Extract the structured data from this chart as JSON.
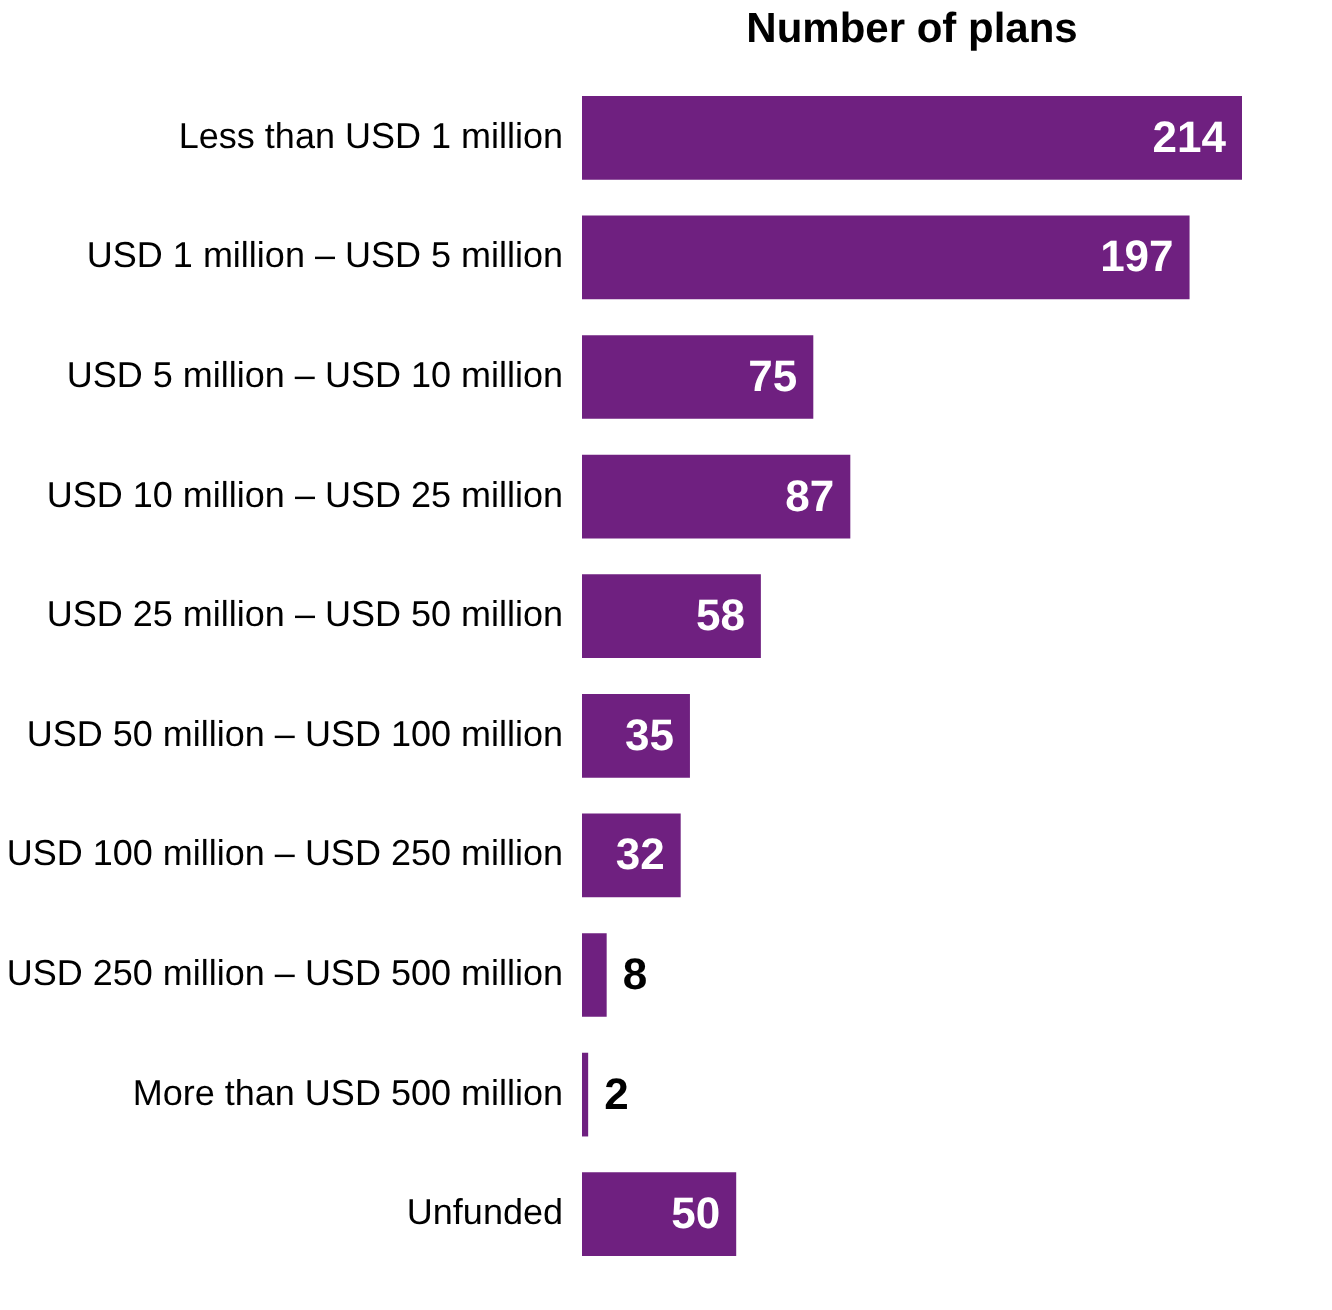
{
  "chart_data": {
    "type": "bar",
    "orientation": "horizontal",
    "title": "Number of plans",
    "categories": [
      "Less than USD 1 million",
      "USD 1 million – USD 5 million",
      "USD 5 million – USD 10 million",
      "USD 10 million – USD 25 million",
      "USD 25 million – USD 50 million",
      "USD 50 million – USD 100 million",
      "USD 100 million – USD 250 million",
      "USD 250 million – USD 500 million",
      "More than USD 500 million",
      "Unfunded"
    ],
    "values": [
      214,
      197,
      75,
      87,
      58,
      35,
      32,
      8,
      2,
      50
    ],
    "color": "#6f2080",
    "data_labels": true
  }
}
